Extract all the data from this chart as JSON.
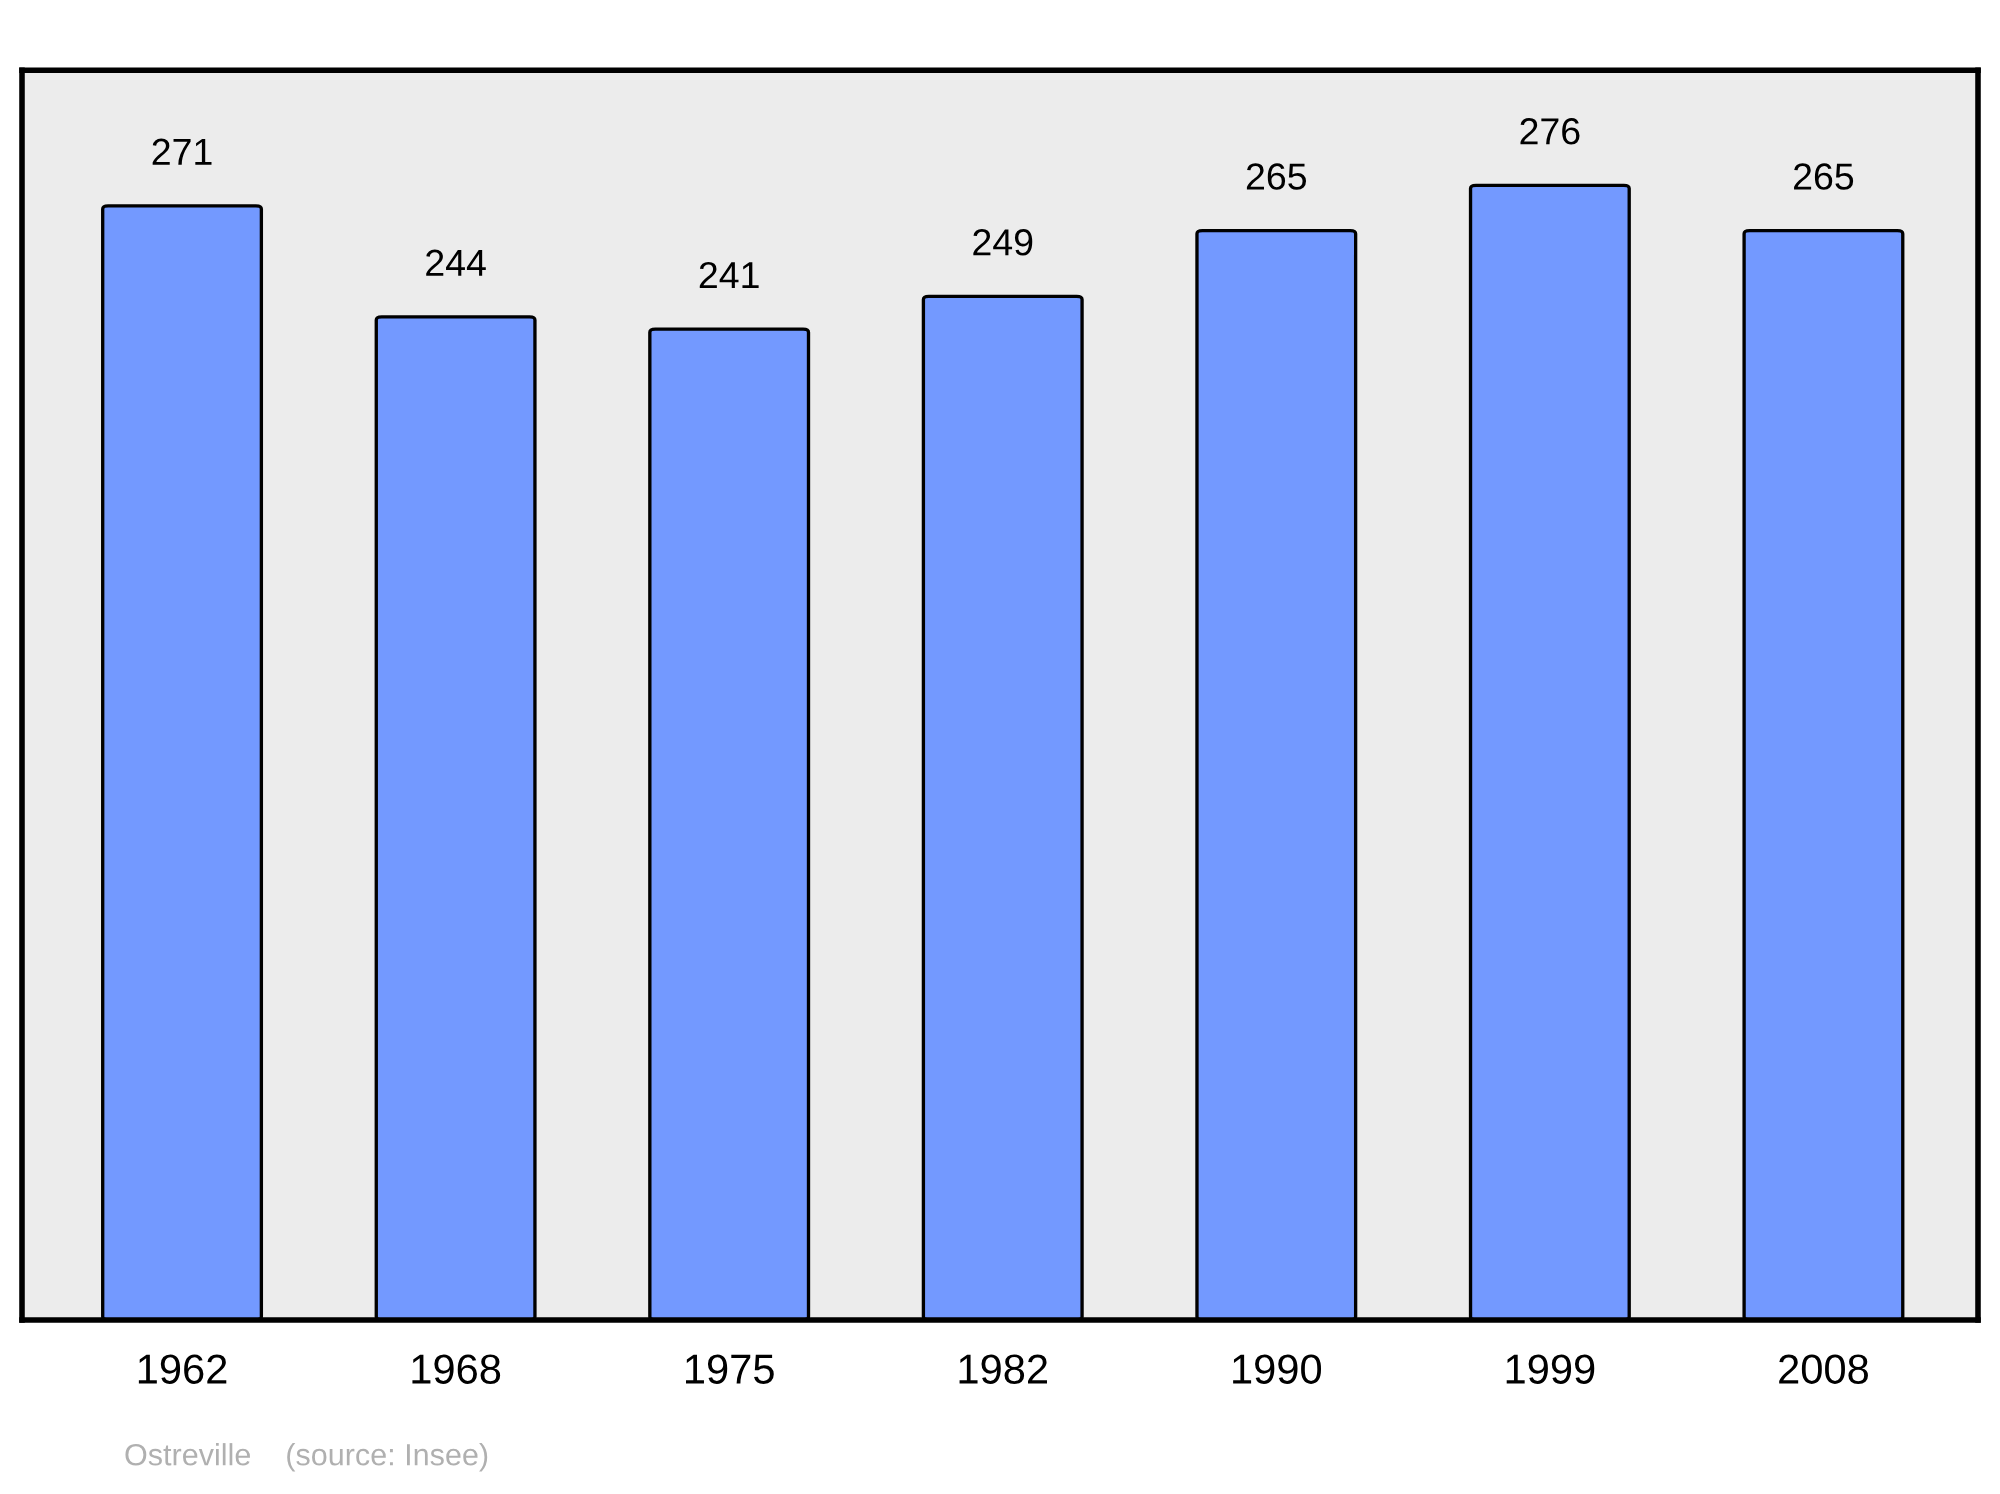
{
  "chart_data": {
    "type": "bar",
    "categories": [
      "1962",
      "1968",
      "1975",
      "1982",
      "1990",
      "1999",
      "2008"
    ],
    "values": [
      271,
      244,
      241,
      249,
      265,
      276,
      265
    ],
    "color": "#7399ff",
    "ylim": [
      0,
      304
    ],
    "data_labels": true,
    "grid": false,
    "tick_labels": "x",
    "annotations": [
      "Ostreville    (source: Insee)"
    ]
  }
}
